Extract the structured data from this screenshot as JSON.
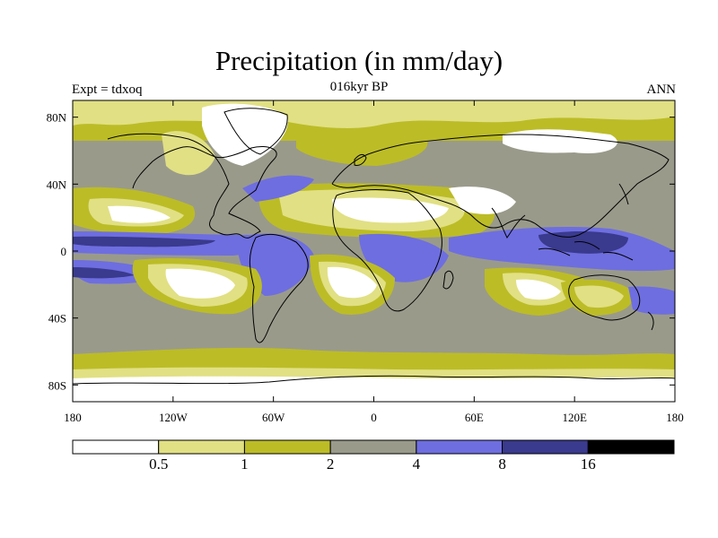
{
  "header": {
    "title": "Precipitation (in mm/day)",
    "experiment": "Expt = tdxoq",
    "period": "016kyr BP",
    "season": "ANN"
  },
  "map": {
    "projection": "cylindrical-equidistant",
    "lon_range": [
      -180,
      180
    ],
    "lat_range": [
      -90,
      90
    ],
    "x_ticks": [
      {
        "value": -180,
        "label": "180"
      },
      {
        "value": -120,
        "label": "120W"
      },
      {
        "value": -60,
        "label": "60W"
      },
      {
        "value": 0,
        "label": "0"
      },
      {
        "value": 60,
        "label": "60E"
      },
      {
        "value": 120,
        "label": "120E"
      },
      {
        "value": 180,
        "label": "180"
      }
    ],
    "y_ticks": [
      {
        "value": 80,
        "label": "80N"
      },
      {
        "value": 40,
        "label": "40N"
      },
      {
        "value": 0,
        "label": "0"
      },
      {
        "value": -40,
        "label": "40S"
      },
      {
        "value": -80,
        "label": "80S"
      }
    ]
  },
  "legend": {
    "colors": [
      "#ffffff",
      "#e1e084",
      "#bcbc27",
      "#9a9a8b",
      "#6e6ee0",
      "#3a3a8e",
      "#000000"
    ],
    "labels": [
      "0.5",
      "1",
      "2",
      "4",
      "8",
      "16"
    ]
  }
}
